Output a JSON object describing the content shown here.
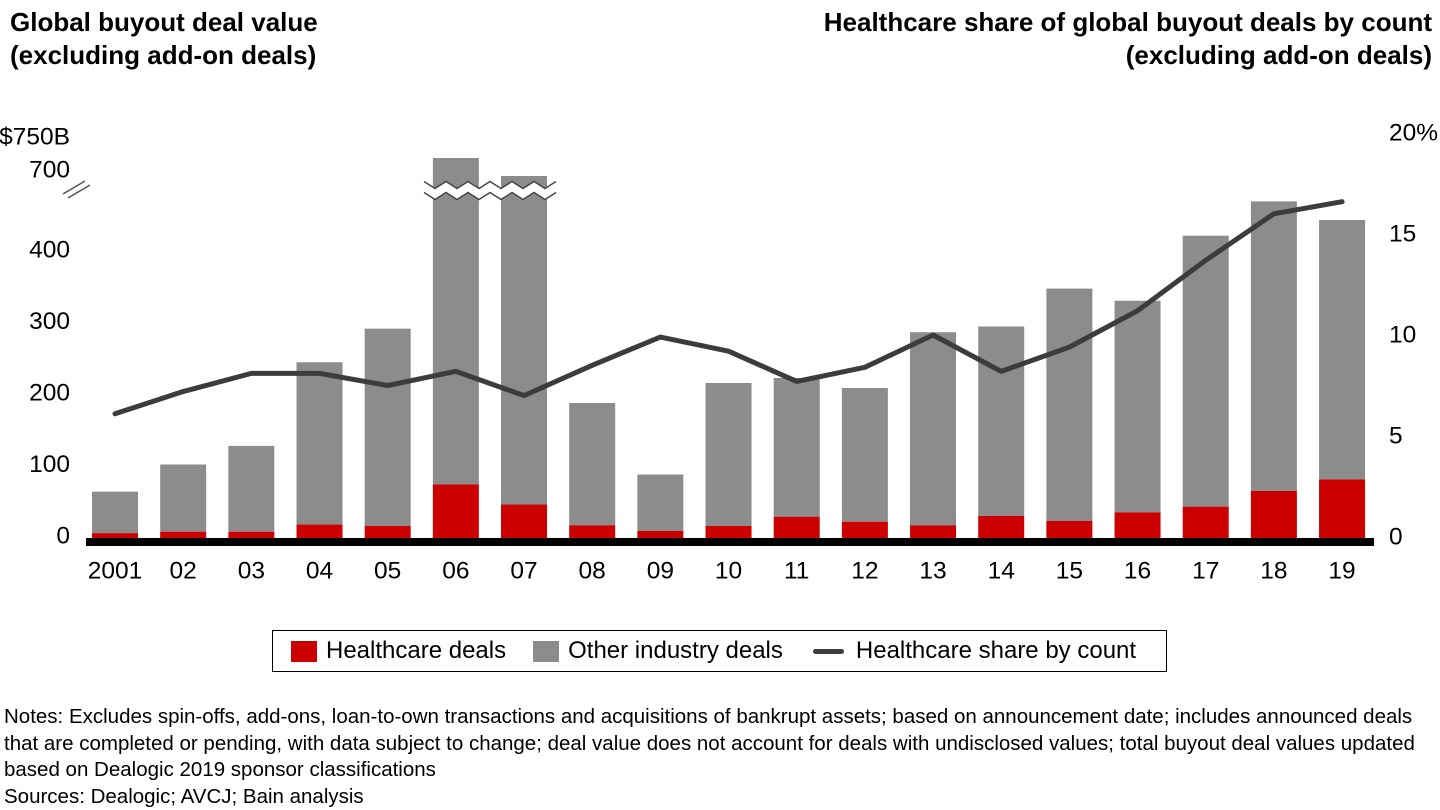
{
  "titles": {
    "left": "Global buyout deal value\n(excluding add-on deals)",
    "right": "Healthcare share of global buyout deals by count\n(excluding add-on deals)"
  },
  "chart_data": {
    "type": "bar",
    "subtype": "stacked-bars-with-line-overlay",
    "categories": [
      "2001",
      "02",
      "03",
      "04",
      "05",
      "06",
      "07",
      "08",
      "09",
      "10",
      "11",
      "12",
      "13",
      "14",
      "15",
      "16",
      "17",
      "18",
      "19"
    ],
    "series": [
      {
        "name": "Healthcare deals",
        "type": "bar",
        "axis": "left",
        "color": "#CC0000",
        "values": [
          4,
          6,
          6,
          16,
          14,
          72,
          44,
          15,
          7,
          14,
          27,
          20,
          15,
          28,
          21,
          33,
          41,
          63,
          79
        ]
      },
      {
        "name": "Other industry deals",
        "type": "bar",
        "axis": "left",
        "color": "#8C8C8C",
        "values": [
          58,
          94,
          120,
          227,
          276,
          648,
          646,
          171,
          79,
          200,
          194,
          187,
          270,
          265,
          325,
          296,
          379,
          405,
          363
        ]
      },
      {
        "name": "Healthcare share by count",
        "type": "line",
        "axis": "right",
        "color": "#3C3C3C",
        "values": [
          6.1,
          7.2,
          8.1,
          8.1,
          7.5,
          8.2,
          7.0,
          8.5,
          9.9,
          9.2,
          7.7,
          8.4,
          10.0,
          8.2,
          9.4,
          11.2,
          13.7,
          16.0,
          16.6
        ]
      }
    ],
    "bar_totals": [
      62,
      100,
      126,
      243,
      290,
      720,
      690,
      186,
      86,
      214,
      221,
      207,
      285,
      293,
      346,
      329,
      420,
      468,
      442
    ],
    "stacked": true,
    "grid": false,
    "left_axis": {
      "unit_label": "$750B",
      "ticks": [
        0,
        100,
        200,
        300,
        400,
        700
      ],
      "axis_break": true,
      "break_between": [
        450,
        700
      ],
      "ylim": [
        0,
        750
      ]
    },
    "right_axis": {
      "tick_labels": [
        "0",
        "5",
        "10",
        "15",
        "20%"
      ],
      "tick_values": [
        0,
        5,
        10,
        15,
        20
      ],
      "ylim": [
        0,
        20
      ]
    },
    "legend_position": "bottom"
  },
  "legend": {
    "items": [
      {
        "label": "Healthcare deals",
        "swatch": "red-square"
      },
      {
        "label": "Other industry deals",
        "swatch": "gray-square"
      },
      {
        "label": "Healthcare share by count",
        "swatch": "dark-line"
      }
    ]
  },
  "notes": "Notes: Excludes spin-offs, add-ons, loan-to-own transactions and acquisitions of bankrupt assets; based on announcement date; includes announced deals that are completed or pending, with data subject to change; deal value does not account for deals with undisclosed values; total buyout deal values updated based on Dealogic 2019 sponsor classifications",
  "sources": "Sources: Dealogic; AVCJ; Bain analysis"
}
